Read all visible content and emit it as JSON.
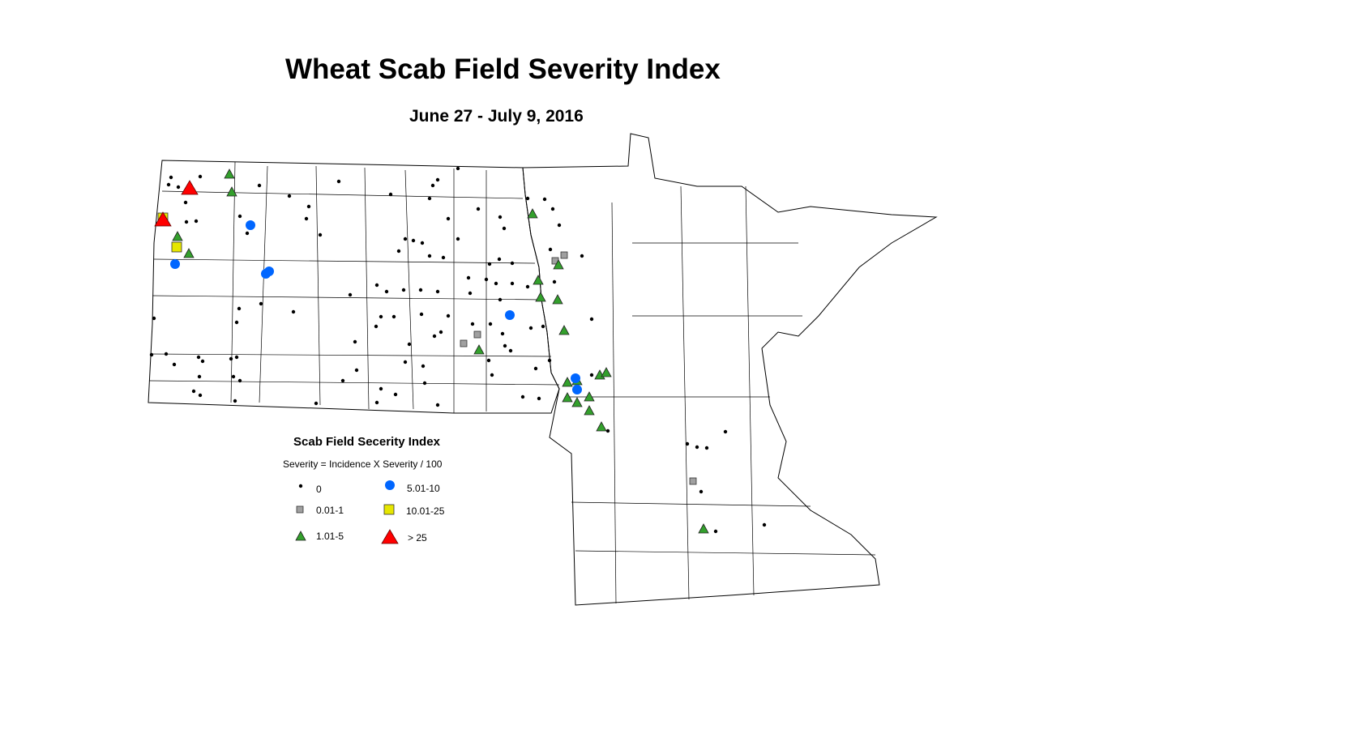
{
  "title": "Wheat Scab Field Severity Index",
  "subtitle": "June 27 - July 9, 2016",
  "legend": {
    "title": "Scab Field Secerity Index",
    "formula": "Severity = Incidence X Severity / 100",
    "classes": [
      {
        "label": "0",
        "symbol": "small-dot",
        "color": "#000000"
      },
      {
        "label": "0.01-1",
        "symbol": "square",
        "color": "#a0a0a0"
      },
      {
        "label": "1.01-5",
        "symbol": "triangle",
        "color": "#33a02c"
      },
      {
        "label": "5.01-10",
        "symbol": "circle",
        "color": "#0066ff"
      },
      {
        "label": "10.01-25",
        "symbol": "square",
        "color": "#e6e600"
      },
      {
        "label": "> 25",
        "symbol": "triangle",
        "color": "#ff0000"
      }
    ]
  }
}
